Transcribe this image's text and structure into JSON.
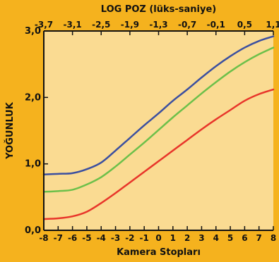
{
  "colors": {
    "background": "#f5b21e",
    "plot_area": "#fadb92",
    "axis": "#111111"
  },
  "chart_data": {
    "type": "line",
    "title": "",
    "top_axis": {
      "label": "LOG POZ (lüks-saniye)",
      "ticks": [
        "-3,7",
        "-3,1",
        "-2,5",
        "-1,9",
        "-1,3",
        "-0,7",
        "-0,1",
        "0,5",
        "1,1"
      ],
      "range": [
        -3.7,
        1.1
      ]
    },
    "xlabel": "Kamera Stopları",
    "ylabel": "YOĞUNLUK",
    "xlim": [
      -8,
      8
    ],
    "ylim": [
      0,
      3
    ],
    "x_ticks": [
      "-8",
      "-7",
      "-6",
      "-5",
      "-4",
      "-3",
      "-2",
      "-1",
      "0",
      "1",
      "2",
      "3",
      "4",
      "5",
      "6",
      "7",
      "8"
    ],
    "y_ticks": [
      {
        "value": 0,
        "label": "0,0"
      },
      {
        "value": 1,
        "label": "1,0"
      },
      {
        "value": 2,
        "label": "2,0"
      },
      {
        "value": 3,
        "label": "3,0"
      }
    ],
    "grid": false,
    "series": [
      {
        "color": "#3b4fa0",
        "x": [
          -8,
          -7,
          -6,
          -5,
          -4,
          -3,
          -2,
          -1,
          0,
          1,
          2,
          3,
          4,
          5,
          6,
          7,
          8
        ],
        "y": [
          0.84,
          0.85,
          0.86,
          0.92,
          1.02,
          1.2,
          1.39,
          1.58,
          1.76,
          1.95,
          2.12,
          2.3,
          2.47,
          2.62,
          2.75,
          2.85,
          2.92
        ]
      },
      {
        "color": "#6cc04a",
        "x": [
          -8,
          -7,
          -6,
          -5,
          -4,
          -3,
          -2,
          -1,
          0,
          1,
          2,
          3,
          4,
          5,
          6,
          7,
          8
        ],
        "y": [
          0.58,
          0.59,
          0.61,
          0.69,
          0.8,
          0.96,
          1.14,
          1.32,
          1.51,
          1.7,
          1.88,
          2.06,
          2.23,
          2.39,
          2.53,
          2.65,
          2.75
        ]
      },
      {
        "color": "#e8352a",
        "x": [
          -8,
          -7,
          -6,
          -5,
          -4,
          -3,
          -2,
          -1,
          0,
          1,
          2,
          3,
          4,
          5,
          6,
          7,
          8
        ],
        "y": [
          0.17,
          0.18,
          0.21,
          0.28,
          0.41,
          0.56,
          0.72,
          0.88,
          1.04,
          1.2,
          1.36,
          1.52,
          1.67,
          1.81,
          1.95,
          2.05,
          2.12
        ]
      }
    ]
  }
}
